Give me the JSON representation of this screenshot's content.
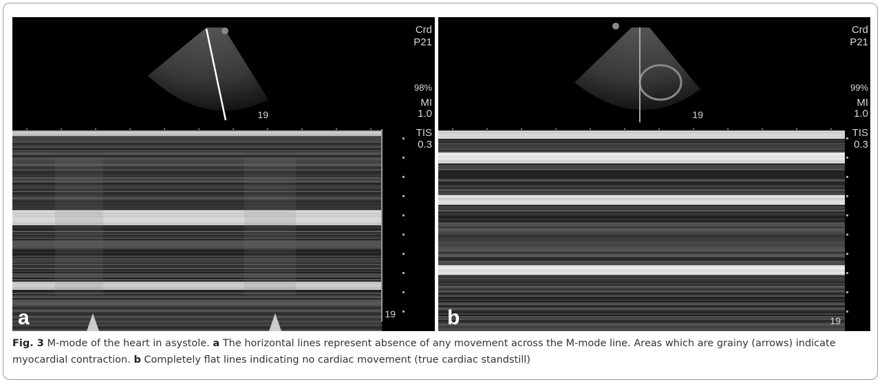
{
  "panels": [
    {
      "label": "a",
      "mode": "Crd",
      "probe": "P21",
      "storage": "98%",
      "mi_label": "MI",
      "mi": "1.0",
      "tis_label": "TIS",
      "tis": "0.3",
      "sector_depth": "19",
      "mmode_depth": "19"
    },
    {
      "label": "b",
      "mode": "Crd",
      "probe": "P21",
      "storage": "99%",
      "mi_label": "MI",
      "mi": "1.0",
      "tis_label": "TIS",
      "tis": "0.3",
      "sector_depth": "19",
      "mmode_depth": "19"
    }
  ],
  "caption": {
    "figure": "Fig. 3",
    "title": "M-mode of the heart in asystole.",
    "parts": [
      {
        "label": "a",
        "text": "The horizontal lines represent absence of any movement across the M-mode line. Areas which are grainy (arrows) indicate myocardial contraction."
      },
      {
        "label": "b",
        "text": "Completely flat lines indicating no cardiac movement (true cardiac standstill)"
      }
    ]
  }
}
